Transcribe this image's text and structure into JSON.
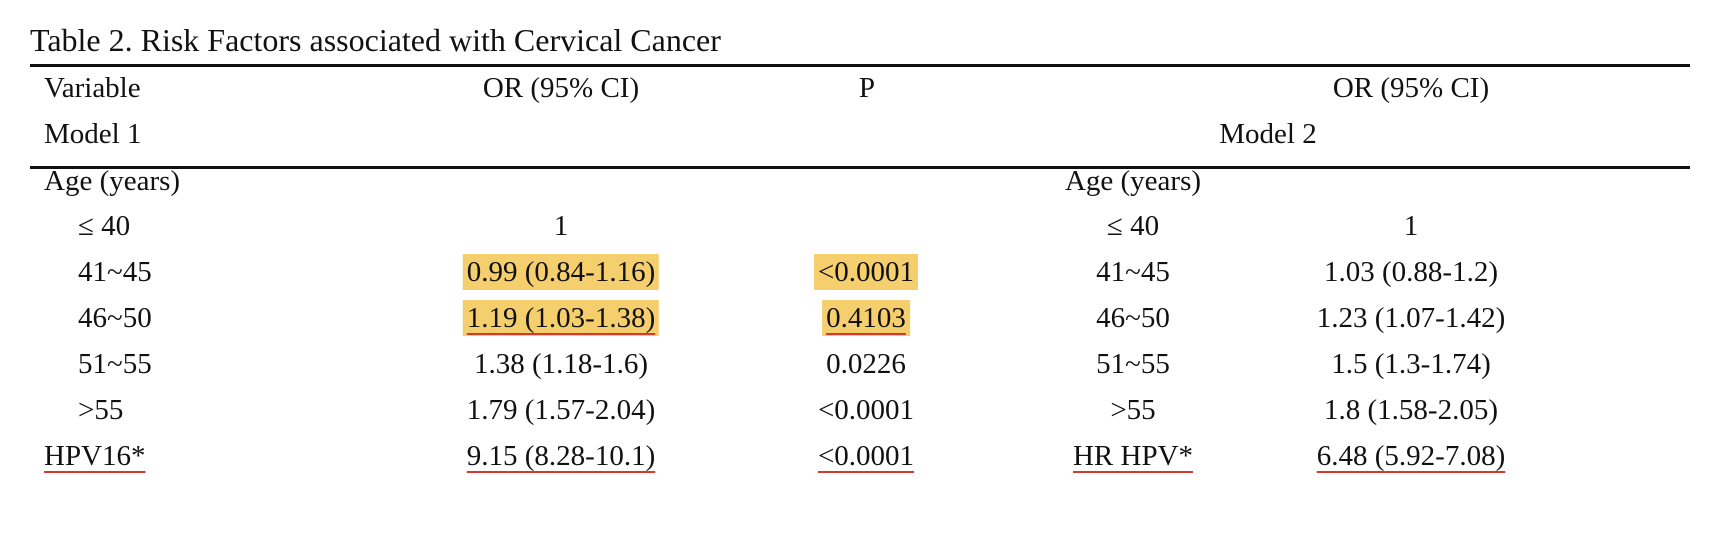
{
  "caption": "Table 2. Risk Factors associated with Cervical Cancer",
  "header": {
    "variable": "Variable",
    "or_ci_1": "OR (95% CI)",
    "p": "P",
    "or_ci_2": "OR (95% CI)",
    "model1": "Model 1",
    "model2": "Model 2"
  },
  "group_label_1": "Age (years)",
  "group_label_2": "Age (years)",
  "rows": [
    {
      "var1": "≤ 40",
      "or1": "1",
      "p": "",
      "var2": "≤ 40",
      "or2": "1"
    },
    {
      "var1": "41~45",
      "or1": "0.99 (0.84-1.16)",
      "p": "<0.0001",
      "var2": "41~45",
      "or2": "1.03 (0.88-1.2)"
    },
    {
      "var1": "46~50",
      "or1": "1.19 (1.03-1.38)",
      "p": "0.4103",
      "var2": "46~50",
      "or2": "1.23 (1.07-1.42)"
    },
    {
      "var1": "51~55",
      "or1": "1.38 (1.18-1.6)",
      "p": "0.0226",
      "var2": "51~55",
      "or2": "1.5 (1.3-1.74)"
    },
    {
      "var1": ">55",
      "or1": "1.79 (1.57-2.04)",
      "p": "<0.0001",
      "var2": ">55",
      "or2": "1.8 (1.58-2.05)"
    },
    {
      "var1": "HPV16*",
      "or1": "9.15 (8.28-10.1)",
      "p": "<0.0001",
      "var2": "HR HPV*",
      "or2": "6.48 (5.92-7.08)"
    }
  ],
  "annotation_colors": {
    "highlight": "#f5cf6e",
    "underline": "#d63a2a"
  }
}
